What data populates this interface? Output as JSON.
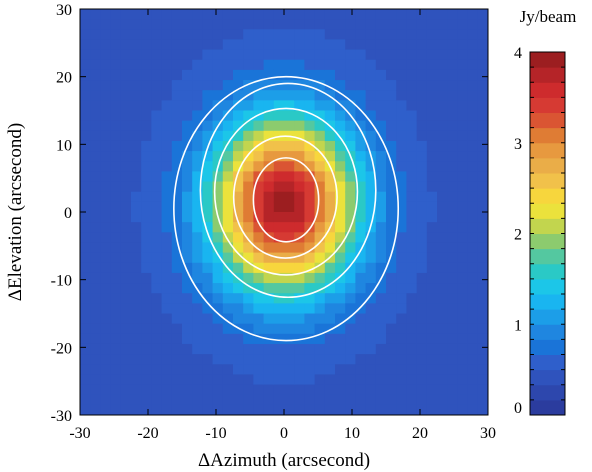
{
  "chart_data": {
    "type": "heatmap",
    "title": "",
    "xlabel": "ΔAzimuth (arcsecond)",
    "ylabel": "ΔElevation (arcsecond)",
    "xlim": [
      -30,
      30
    ],
    "ylim": [
      -30,
      30
    ],
    "xticks": [
      -30,
      -20,
      -10,
      0,
      10,
      20,
      30
    ],
    "yticks": [
      -30,
      -20,
      -10,
      0,
      10,
      20,
      30
    ],
    "background_level": 0.45,
    "peak": {
      "x": 0,
      "y": 1,
      "value": 3.9,
      "sigma_x": 7.5,
      "sigma_y": 9.0
    },
    "contours": [
      {
        "rx": 4.8,
        "ry": 6.2,
        "cx": 0.3,
        "cy": 1.8
      },
      {
        "rx": 7.6,
        "ry": 9.0,
        "cx": 0.2,
        "cy": 2.2
      },
      {
        "rx": 10.5,
        "ry": 12.3,
        "cx": 0.3,
        "cy": 3.0
      },
      {
        "rx": 12.9,
        "ry": 15.8,
        "cx": 0.6,
        "cy": 3.2
      },
      {
        "rx": 16.5,
        "ry": 19.5,
        "cx": 0.3,
        "cy": 0.5
      }
    ],
    "colorbar": {
      "label": "Jy/beam",
      "range": [
        0,
        4
      ],
      "ticks": [
        0,
        1,
        2,
        3,
        4
      ],
      "colors": [
        "#2b3c9e",
        "#2d47ad",
        "#2f53bd",
        "#2f5fcb",
        "#1a74d8",
        "#1f86e0",
        "#1c9ee8",
        "#19b5f0",
        "#1cc6e8",
        "#2ac9c6",
        "#54c8a0",
        "#8ccb6e",
        "#c2d54e",
        "#ebe23c",
        "#f7d63d",
        "#f1c14a",
        "#eaad48",
        "#e7993f",
        "#df7c34",
        "#da5533",
        "#d63a33",
        "#ce2b2d",
        "#b52428",
        "#9c1e20"
      ]
    }
  }
}
